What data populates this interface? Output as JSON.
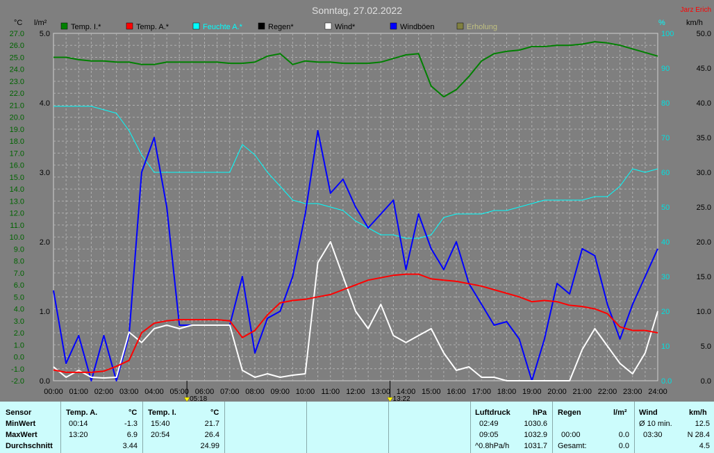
{
  "header": {
    "title": "Sonntag, 27.02.2022",
    "author": "Jarz Erich"
  },
  "units": {
    "temp": "°C",
    "rain": "l/m²",
    "humidity": "%",
    "speed": "km/h"
  },
  "legend": [
    {
      "label": "Temp. I.*",
      "color": "#008000"
    },
    {
      "label": "Temp. A.*",
      "color": "#ff0000"
    },
    {
      "label": "Feuchte A.*",
      "color": "#00ffff"
    },
    {
      "label": "Regen*",
      "color": "#000000"
    },
    {
      "label": "Wind*",
      "color": "#ffffff"
    },
    {
      "label": "Windböen",
      "color": "#0000ff"
    },
    {
      "label": "Erholung",
      "color": "#808040"
    }
  ],
  "markers": {
    "sunrise": "05:18",
    "noon": "13:22"
  },
  "chart_data": {
    "type": "line",
    "x_label_unit": "hour of day",
    "x": [
      0,
      0.5,
      1,
      1.5,
      2,
      2.5,
      3,
      3.5,
      4,
      4.5,
      5,
      5.5,
      6,
      6.5,
      7,
      7.5,
      8,
      8.5,
      9,
      9.5,
      10,
      10.5,
      11,
      11.5,
      12,
      12.5,
      13,
      13.5,
      14,
      14.5,
      15,
      15.5,
      16,
      16.5,
      17,
      17.5,
      18,
      18.5,
      19,
      19.5,
      20,
      20.5,
      21,
      21.5,
      22,
      22.5,
      23,
      23.5,
      24
    ],
    "x_ticks": [
      "00:00",
      "01:00",
      "02:00",
      "03:00",
      "04:00",
      "05:00",
      "06:00",
      "07:00",
      "08:00",
      "09:00",
      "10:00",
      "11:00",
      "12:00",
      "13:00",
      "14:00",
      "15:00",
      "16:00",
      "17:00",
      "18:00",
      "19:00",
      "20:00",
      "21:00",
      "22:00",
      "23:00",
      "24:00"
    ],
    "axes": {
      "temp": {
        "min": -2.0,
        "max": 27.0,
        "step": 1.0
      },
      "rain": {
        "min": 0.0,
        "max": 5.0,
        "ticks": [
          "0.0",
          "1.0",
          "2.0",
          "3.0",
          "4.0",
          "5.0"
        ]
      },
      "humidity": {
        "min": 0,
        "max": 100,
        "ticks": [
          "0.0",
          "10",
          "20",
          "30",
          "40",
          "50",
          "60",
          "70",
          "80",
          "90",
          "100"
        ]
      },
      "speed": {
        "min": 0.0,
        "max": 50.0,
        "ticks": [
          "0.0",
          "5.0",
          "10.0",
          "15.0",
          "20.0",
          "25.0",
          "30.0",
          "35.0",
          "40.0",
          "45.0",
          "50.0"
        ]
      }
    },
    "series": [
      {
        "name": "Temp. I.*",
        "axis": "temp",
        "color": "#008000",
        "values": [
          25.0,
          25.0,
          24.8,
          24.7,
          24.7,
          24.6,
          24.6,
          24.4,
          24.4,
          24.6,
          24.6,
          24.6,
          24.6,
          24.6,
          24.5,
          24.5,
          24.6,
          25.1,
          25.3,
          24.4,
          24.7,
          24.6,
          24.6,
          24.5,
          24.5,
          24.5,
          24.6,
          24.9,
          25.2,
          25.3,
          22.6,
          21.7,
          22.3,
          23.4,
          24.7,
          25.3,
          25.5,
          25.6,
          25.9,
          25.9,
          26.0,
          26.0,
          26.1,
          26.3,
          26.2,
          26.0,
          25.7,
          25.4,
          25.1
        ]
      },
      {
        "name": "Temp. A.*",
        "axis": "temp",
        "color": "#ff0000",
        "values": [
          -1.1,
          -1.3,
          -1.3,
          -1.3,
          -1.2,
          -0.8,
          -0.3,
          2.0,
          2.8,
          3.0,
          3.1,
          3.1,
          3.1,
          3.1,
          3.0,
          1.6,
          2.2,
          3.5,
          4.5,
          4.7,
          4.8,
          5.0,
          5.2,
          5.6,
          6.0,
          6.4,
          6.6,
          6.8,
          6.9,
          6.9,
          6.5,
          6.4,
          6.3,
          6.1,
          5.9,
          5.6,
          5.3,
          5.0,
          4.6,
          4.7,
          4.6,
          4.3,
          4.2,
          4.0,
          3.6,
          2.5,
          2.2,
          2.2,
          2.0
        ]
      },
      {
        "name": "Feuchte A.*",
        "axis": "humidity",
        "color": "#00ffff",
        "values": [
          79,
          79,
          79,
          79,
          78,
          77,
          72,
          65,
          60,
          60,
          60,
          60,
          60,
          60,
          60,
          68,
          65,
          60,
          56,
          52,
          51,
          51,
          50,
          49,
          46,
          44,
          42,
          42,
          41,
          41,
          42,
          47,
          48,
          48,
          48,
          49,
          49,
          50,
          51,
          52,
          52,
          52,
          52,
          53,
          53,
          56,
          61,
          60,
          61
        ]
      },
      {
        "name": "Wind*",
        "axis": "speed",
        "color": "#ffffff",
        "values": [
          2.0,
          0.5,
          1.5,
          0.5,
          0.4,
          0.5,
          7.0,
          5.5,
          7.5,
          8.0,
          7.5,
          8.0,
          8.0,
          8.0,
          8.0,
          1.5,
          0.5,
          1.0,
          0.5,
          0.8,
          1.0,
          17.0,
          20.0,
          15.0,
          10.0,
          7.5,
          11.0,
          6.5,
          5.5,
          6.5,
          7.5,
          4.0,
          1.5,
          2.0,
          0.5,
          0.5,
          0.0,
          0.0,
          0.0,
          0.0,
          0.0,
          0.0,
          4.5,
          7.5,
          5.0,
          2.5,
          1.0,
          4.0,
          10.0
        ]
      },
      {
        "name": "Windböen",
        "axis": "speed",
        "color": "#0000ff",
        "values": [
          13.0,
          2.5,
          6.5,
          0.0,
          6.5,
          0.0,
          6.5,
          30.0,
          35.0,
          25.0,
          8.0,
          8.0,
          8.0,
          8.0,
          8.0,
          15.0,
          4.0,
          9.0,
          10.0,
          15.0,
          24.0,
          36.0,
          27.0,
          29.0,
          25.0,
          22.0,
          24.0,
          26.0,
          16.0,
          24.0,
          19.0,
          16.0,
          20.0,
          14.0,
          11.0,
          8.0,
          8.5,
          6.0,
          0.0,
          6.0,
          14.0,
          12.5,
          19.0,
          18.0,
          11.0,
          6.0,
          11.0,
          15.0,
          19.0
        ]
      }
    ],
    "tables": {
      "sensor": {
        "head": "Sensor",
        "rows": [
          "MinWert",
          "MaxWert",
          "Durchschnitt"
        ]
      },
      "temp_a": {
        "head": "Temp. A.",
        "unit": "°C",
        "rows": [
          [
            "00:14",
            "-1.3"
          ],
          [
            "13:20",
            "6.9"
          ],
          [
            "",
            "3.44"
          ]
        ]
      },
      "temp_i": {
        "head": "Temp. I.",
        "unit": "°C",
        "rows": [
          [
            "15:40",
            "21.7"
          ],
          [
            "20:54",
            "26.4"
          ],
          [
            "",
            "24.99"
          ]
        ]
      },
      "luftdruck": {
        "head": "Luftdruck",
        "unit": "hPa",
        "rows": [
          [
            "02:49",
            "1030.6"
          ],
          [
            "09:05",
            "1032.9"
          ],
          [
            "^0.8hPa/h",
            "1031.7"
          ]
        ]
      },
      "regen": {
        "head": "Regen",
        "unit": "l/m²",
        "rows": [
          [
            "00:00",
            "0.0"
          ],
          [
            "Gesamt:",
            "0.0"
          ]
        ]
      },
      "wind": {
        "head": "Wind",
        "unit": "km/h",
        "rows": [
          [
            "Ø 10 min.",
            "12.5"
          ],
          [
            "03:30",
            "N 28.4"
          ],
          [
            "",
            "4.5"
          ]
        ]
      }
    }
  }
}
